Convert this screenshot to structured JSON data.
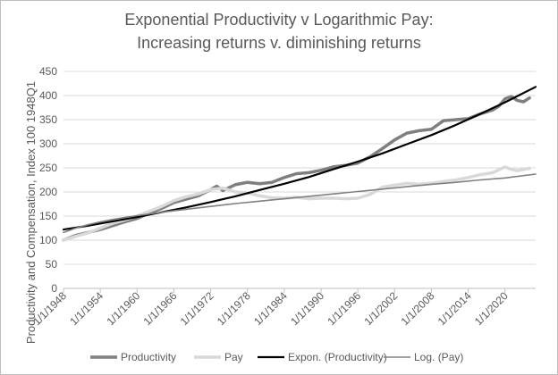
{
  "chart_data": {
    "type": "line",
    "title_lines": [
      "Exponential Productivity v Logarithmic Pay:",
      "Increasing returns v. diminishing returns"
    ],
    "xlabel": "",
    "ylabel": "Productivity and Compensation, Index 100 1948Q1",
    "xlim": [
      1948,
      2025
    ],
    "ylim": [
      0,
      450
    ],
    "y_ticks": [
      0,
      50,
      100,
      150,
      200,
      250,
      300,
      350,
      400,
      450
    ],
    "x_ticks": [
      {
        "year": 1948,
        "label": "1/1/1948"
      },
      {
        "year": 1954,
        "label": "1/1/1954"
      },
      {
        "year": 1960,
        "label": "1/1/1960"
      },
      {
        "year": 1966,
        "label": "1/1/1966"
      },
      {
        "year": 1972,
        "label": "1/1/1972"
      },
      {
        "year": 1978,
        "label": "1/1/1978"
      },
      {
        "year": 1984,
        "label": "1/1/1984"
      },
      {
        "year": 1990,
        "label": "1/1/1990"
      },
      {
        "year": 1996,
        "label": "1/1/1996"
      },
      {
        "year": 2002,
        "label": "1/1/2002"
      },
      {
        "year": 2008,
        "label": "1/1/2008"
      },
      {
        "year": 2014,
        "label": "1/1/2014"
      },
      {
        "year": 2020,
        "label": "1/1/2020"
      }
    ],
    "grid": true,
    "legend_position": "bottom",
    "series": [
      {
        "name": "Productivity",
        "color": "#7f7f7f",
        "width": 3.5,
        "x": [
          1948,
          1950,
          1952,
          1954,
          1956,
          1958,
          1960,
          1962,
          1964,
          1966,
          1968,
          1970,
          1972,
          1973,
          1974,
          1976,
          1978,
          1980,
          1982,
          1984,
          1986,
          1988,
          1990,
          1992,
          1994,
          1996,
          1998,
          2000,
          2002,
          2004,
          2006,
          2008,
          2010,
          2012,
          2014,
          2016,
          2018,
          2019,
          2020,
          2021,
          2022,
          2023,
          2024
        ],
        "y": [
          100,
          110,
          116,
          122,
          130,
          138,
          145,
          156,
          166,
          178,
          185,
          192,
          205,
          212,
          203,
          215,
          220,
          217,
          220,
          230,
          238,
          240,
          245,
          252,
          255,
          260,
          273,
          290,
          308,
          322,
          327,
          330,
          348,
          350,
          352,
          362,
          370,
          378,
          393,
          398,
          390,
          387,
          395
        ]
      },
      {
        "name": "Pay",
        "color": "#d9d9d9",
        "width": 3.5,
        "x": [
          1948,
          1950,
          1952,
          1954,
          1956,
          1958,
          1960,
          1962,
          1964,
          1966,
          1968,
          1970,
          1972,
          1974,
          1976,
          1978,
          1980,
          1982,
          1984,
          1986,
          1988,
          1990,
          1992,
          1994,
          1996,
          1998,
          2000,
          2002,
          2004,
          2006,
          2008,
          2010,
          2012,
          2014,
          2016,
          2018,
          2020,
          2021,
          2022,
          2024
        ],
        "y": [
          100,
          108,
          115,
          125,
          135,
          142,
          150,
          160,
          170,
          182,
          190,
          196,
          205,
          208,
          200,
          198,
          192,
          188,
          187,
          189,
          186,
          187,
          187,
          186,
          187,
          195,
          210,
          214,
          218,
          216,
          218,
          222,
          225,
          230,
          236,
          240,
          252,
          247,
          244,
          249
        ]
      },
      {
        "name": "Expon. (Productivity)",
        "color": "#000000",
        "width": 2.2,
        "kind": "exponential",
        "x": [
          1948,
          1952,
          1956,
          1960,
          1964,
          1968,
          1972,
          1976,
          1980,
          1984,
          1988,
          1992,
          1996,
          2000,
          2004,
          2008,
          2012,
          2016,
          2020,
          2025
        ],
        "y": [
          122,
          130,
          139,
          148,
          158,
          168,
          179,
          191,
          204,
          217,
          231,
          247,
          263,
          280,
          299,
          318,
          339,
          362,
          386,
          418
        ]
      },
      {
        "name": "Log. (Pay)",
        "color": "#808080",
        "width": 1.6,
        "kind": "logarithmic",
        "x": [
          1948,
          1950,
          1952,
          1954,
          1956,
          1958,
          1960,
          1964,
          1968,
          1972,
          1976,
          1980,
          1984,
          1988,
          1992,
          1996,
          2000,
          2004,
          2008,
          2012,
          2016,
          2020,
          2025
        ],
        "y": [
          116,
          125,
          132,
          138,
          143,
          147,
          151,
          158,
          164,
          170,
          176,
          181,
          186,
          191,
          196,
          201,
          206,
          211,
          216,
          220,
          225,
          229,
          237
        ]
      }
    ]
  }
}
